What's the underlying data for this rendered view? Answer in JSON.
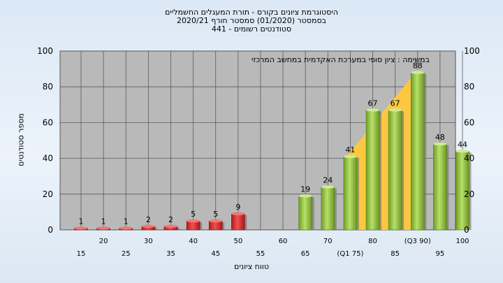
{
  "chart_data": {
    "type": "bar",
    "title": "היסטוגרמת ציונים בקורס - תורת המעגלים החשמליים",
    "subtitle_lines": [
      "בסמסטר  (01/2020)  סמסטר חורף  2020/21",
      "סטודנטים רשומים - 441"
    ],
    "annotation": "במשימה : ציון סופי במערכת האקדמית במחשב המרכזי",
    "xlabel": "טווח ציונים",
    "ylabel": "מספר סטודנטים",
    "ylim": [
      0,
      100
    ],
    "yticks": [
      0,
      20,
      40,
      60,
      80,
      100
    ],
    "grid": true,
    "categories": [
      "15",
      "20",
      "25",
      "30",
      "35",
      "40",
      "45",
      "50",
      "55",
      "60",
      "65",
      "70",
      "(Q1 75)",
      "80",
      "85",
      "(Q3 90)",
      "95",
      "100"
    ],
    "values": [
      1,
      1,
      1,
      2,
      2,
      5,
      5,
      9,
      0,
      0,
      19,
      24,
      41,
      67,
      67,
      88,
      48,
      44
    ],
    "failing_color": "#d42a2a",
    "passing_color": "#8dbf3a",
    "quartile_band_color": "#ffc83a",
    "plot_background": "#b9b9b9"
  }
}
